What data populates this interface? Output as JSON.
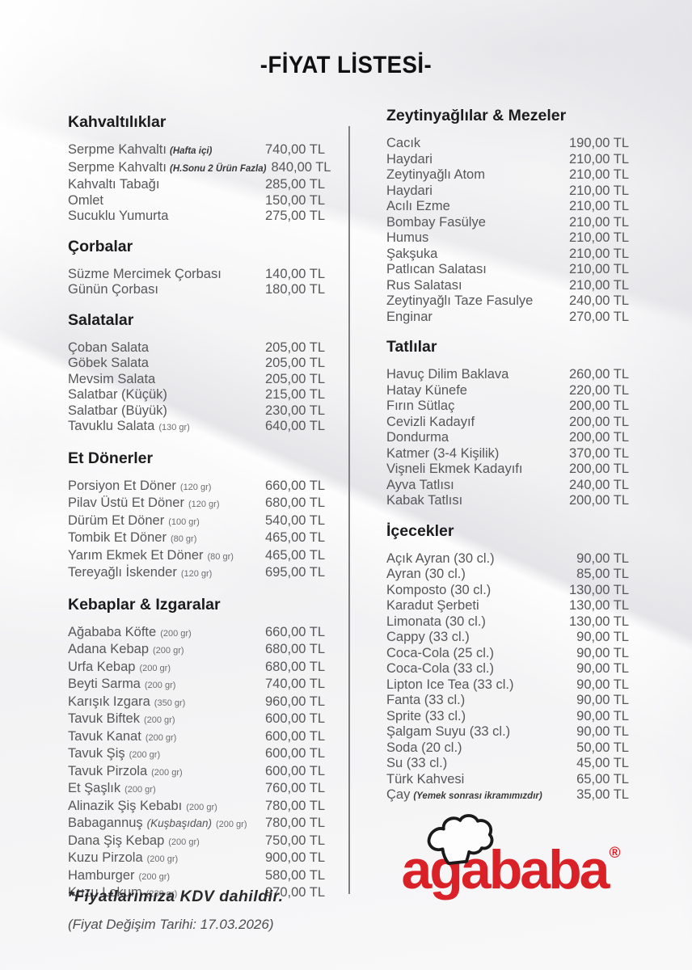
{
  "page": {
    "title": "-FİYAT LİSTESİ-"
  },
  "columns": {
    "left": {
      "sections": [
        {
          "title": "Kahvaltılıklar",
          "items": [
            {
              "name": "Serpme Kahvaltı",
              "notes": [
                {
                  "text": "(Hafta içi)",
                  "style": "emph"
                }
              ],
              "price": "740,00 TL"
            },
            {
              "name": "Serpme Kahvaltı",
              "notes": [
                {
                  "text": "(H.Sonu 2 Ürün Fazla)",
                  "style": "emph"
                }
              ],
              "price": "840,00 TL"
            },
            {
              "name": "Kahvaltı Tabağı",
              "price": "285,00 TL"
            },
            {
              "name": "Omlet",
              "price": "150,00 TL"
            },
            {
              "name": "Sucuklu Yumurta",
              "price": "275,00 TL"
            }
          ]
        },
        {
          "title": "Çorbalar",
          "items": [
            {
              "name": "Süzme Mercimek Çorbası",
              "price": "140,00 TL"
            },
            {
              "name": "Günün Çorbası",
              "price": "180,00 TL"
            }
          ]
        },
        {
          "title": "Salatalar",
          "items": [
            {
              "name": "Çoban Salata",
              "price": "205,00 TL"
            },
            {
              "name": "Göbek Salata",
              "price": "205,00 TL"
            },
            {
              "name": "Mevsim Salata",
              "price": "205,00 TL"
            },
            {
              "name": "Salatbar (Küçük)",
              "price": "215,00 TL"
            },
            {
              "name": "Salatbar (Büyük)",
              "price": "230,00 TL"
            },
            {
              "name": "Tavuklu Salata",
              "notes": [
                {
                  "text": "(130 gr)",
                  "style": "size"
                }
              ],
              "price": "640,00 TL"
            }
          ]
        },
        {
          "title": "Et Dönerler",
          "items": [
            {
              "name": "Porsiyon Et Döner",
              "notes": [
                {
                  "text": "(120 gr)",
                  "style": "size"
                }
              ],
              "price": "660,00 TL"
            },
            {
              "name": "Pilav Üstü Et Döner",
              "notes": [
                {
                  "text": "(120 gr)",
                  "style": "size"
                }
              ],
              "price": "680,00 TL"
            },
            {
              "name": "Dürüm Et Döner",
              "notes": [
                {
                  "text": "(100 gr)",
                  "style": "size"
                }
              ],
              "price": "540,00 TL"
            },
            {
              "name": "Tombik Et Döner",
              "notes": [
                {
                  "text": "(80 gr)",
                  "style": "size"
                }
              ],
              "price": "465,00 TL"
            },
            {
              "name": "Yarım Ekmek Et Döner",
              "notes": [
                {
                  "text": "(80 gr)",
                  "style": "size"
                }
              ],
              "price": "465,00 TL"
            },
            {
              "name": "Tereyağlı İskender",
              "notes": [
                {
                  "text": "(120 gr)",
                  "style": "size"
                }
              ],
              "price": "695,00 TL"
            }
          ]
        },
        {
          "title": "Kebaplar & Izgaralar",
          "items": [
            {
              "name": "Ağababa Köfte",
              "notes": [
                {
                  "text": "(200 gr)",
                  "style": "size"
                }
              ],
              "price": "660,00 TL"
            },
            {
              "name": "Adana Kebap",
              "notes": [
                {
                  "text": "(200 gr)",
                  "style": "size"
                }
              ],
              "price": "680,00 TL"
            },
            {
              "name": "Urfa Kebap",
              "notes": [
                {
                  "text": "(200 gr)",
                  "style": "size"
                }
              ],
              "price": "680,00 TL"
            },
            {
              "name": "Beyti Sarma",
              "notes": [
                {
                  "text": "(200 gr)",
                  "style": "size"
                }
              ],
              "price": "740,00 TL"
            },
            {
              "name": "Karışık Izgara",
              "notes": [
                {
                  "text": "(350 gr)",
                  "style": "size"
                }
              ],
              "price": "960,00 TL"
            },
            {
              "name": "Tavuk Biftek",
              "notes": [
                {
                  "text": "(200 gr)",
                  "style": "size"
                }
              ],
              "price": "600,00 TL"
            },
            {
              "name": "Tavuk Kanat",
              "notes": [
                {
                  "text": "(200 gr)",
                  "style": "size"
                }
              ],
              "price": "600,00 TL"
            },
            {
              "name": "Tavuk Şiş",
              "notes": [
                {
                  "text": "(200 gr)",
                  "style": "size"
                }
              ],
              "price": "600,00 TL"
            },
            {
              "name": "Tavuk Pirzola",
              "notes": [
                {
                  "text": "(200 gr)",
                  "style": "size"
                }
              ],
              "price": "600,00 TL"
            },
            {
              "name": "Et Şaşlık",
              "notes": [
                {
                  "text": "(200 gr)",
                  "style": "size"
                }
              ],
              "price": "760,00 TL"
            },
            {
              "name": "Alinazik Şiş Kebabı",
              "notes": [
                {
                  "text": "(200 gr)",
                  "style": "size"
                }
              ],
              "price": "780,00 TL"
            },
            {
              "name": "Babagannuş",
              "notes": [
                {
                  "text": "(Kuşbaşıdan)",
                  "style": "ital"
                },
                {
                  "text": "(200 gr)",
                  "style": "size"
                }
              ],
              "price": "780,00 TL"
            },
            {
              "name": "Dana Şiş Kebap",
              "notes": [
                {
                  "text": "(200 gr)",
                  "style": "size"
                }
              ],
              "price": "750,00 TL"
            },
            {
              "name": "Kuzu Pirzola",
              "notes": [
                {
                  "text": "(200 gr)",
                  "style": "size"
                }
              ],
              "price": "900,00 TL"
            },
            {
              "name": "Hamburger",
              "notes": [
                {
                  "text": "(200 gr)",
                  "style": "size"
                }
              ],
              "price": "580,00 TL"
            },
            {
              "name": "Kuzu Lokum",
              "notes": [
                {
                  "text": "(230 gr)",
                  "style": "size"
                }
              ],
              "price": "970,00 TL"
            }
          ]
        }
      ]
    },
    "right": {
      "sections": [
        {
          "title": "Zeytinyağlılar & Mezeler",
          "items": [
            {
              "name": "Cacık",
              "price": "190,00 TL"
            },
            {
              "name": "Haydari",
              "price": "210,00 TL"
            },
            {
              "name": "Zeytinyağlı Atom",
              "price": "210,00 TL"
            },
            {
              "name": "Haydari",
              "price": "210,00 TL"
            },
            {
              "name": "Acılı Ezme",
              "price": "210,00 TL"
            },
            {
              "name": "Bombay Fasülye",
              "price": "210,00 TL"
            },
            {
              "name": "Humus",
              "price": "210,00 TL"
            },
            {
              "name": "Şakşuka",
              "price": "210,00 TL"
            },
            {
              "name": "Patlıcan Salatası",
              "price": "210,00 TL"
            },
            {
              "name": "Rus Salatası",
              "price": "210,00 TL"
            },
            {
              "name": "Zeytinyağlı Taze Fasulye",
              "price": "240,00 TL"
            },
            {
              "name": "Enginar",
              "price": "270,00 TL"
            }
          ]
        },
        {
          "title": "Tatlılar",
          "items": [
            {
              "name": "Havuç Dilim Baklava",
              "price": "260,00 TL"
            },
            {
              "name": "Hatay Künefe",
              "price": "220,00 TL"
            },
            {
              "name": "Fırın Sütlaç",
              "price": "200,00 TL"
            },
            {
              "name": "Cevizli Kadayıf",
              "price": "200,00 TL"
            },
            {
              "name": "Dondurma",
              "price": "200,00 TL"
            },
            {
              "name": "Katmer (3-4 Kişilik)",
              "price": "370,00 TL"
            },
            {
              "name": "Vişneli Ekmek Kadayıfı",
              "price": "200,00 TL"
            },
            {
              "name": "Ayva Tatlısı",
              "price": "240,00 TL"
            },
            {
              "name": "Kabak Tatlısı",
              "price": "200,00 TL"
            }
          ]
        },
        {
          "title": "İçecekler",
          "items": [
            {
              "name": "Açık Ayran (30 cl.)",
              "price": "90,00 TL"
            },
            {
              "name": "Ayran (30 cl.)",
              "price": "85,00 TL"
            },
            {
              "name": "Komposto (30 cl.)",
              "price": "130,00 TL"
            },
            {
              "name": "Karadut Şerbeti",
              "price": "130,00 TL"
            },
            {
              "name": "Limonata (30 cl.)",
              "price": "130,00 TL"
            },
            {
              "name": "Cappy (33 cl.)",
              "price": "90,00 TL"
            },
            {
              "name": "Coca-Cola (25 cl.)",
              "price": "90,00 TL"
            },
            {
              "name": "Coca-Cola (33 cl.)",
              "price": "90,00 TL"
            },
            {
              "name": "Lipton Ice Tea (33 cl.)",
              "price": "90,00 TL"
            },
            {
              "name": "Fanta (33 cl.)",
              "price": "90,00 TL"
            },
            {
              "name": "Sprite (33 cl.)",
              "price": "90,00 TL"
            },
            {
              "name": "Şalgam Suyu (33 cl.)",
              "price": "90,00 TL"
            },
            {
              "name": "Soda (20 cl.)",
              "price": "50,00 TL"
            },
            {
              "name": "Su (33 cl.)",
              "price": "45,00 TL"
            },
            {
              "name": "Türk Kahvesi",
              "price": "65,00 TL"
            },
            {
              "name": "Çay",
              "notes": [
                {
                  "text": "(Yemek sonrası ikramımızdır)",
                  "style": "emph"
                }
              ],
              "price": "35,00 TL"
            }
          ]
        }
      ]
    }
  },
  "footer": {
    "vat_note": "*Fiyatlarımıza KDV dahildir.",
    "date_note": "(Fiyat Değişim Tarihi:  17.03.2026)"
  },
  "logo": {
    "text": "agababa",
    "registered": "®",
    "color": "#da2128",
    "icon": "chef-hat-icon"
  }
}
